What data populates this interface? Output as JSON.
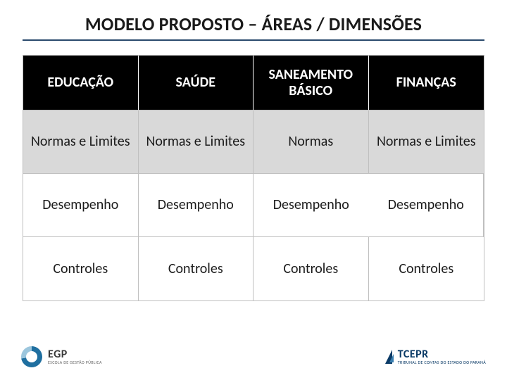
{
  "title": "MODELO PROPOSTO – ÁREAS / DIMENSÕES",
  "table": {
    "header_bg": "#000000",
    "header_fg": "#ffffff",
    "row2_bg": "#d9d9d9",
    "cell_border": "#bfbfbf",
    "columns": [
      "EDUCAÇÃO",
      "SAÚDE",
      "SANEAMENTO BÁSICO",
      "FINANÇAS"
    ],
    "rows": [
      [
        "Normas e Limites",
        "Normas e Limites",
        "Normas",
        "Normas e Limites"
      ],
      [
        "Desempenho",
        "Desempenho",
        "Desempenho",
        "Desempenho"
      ],
      [
        "Controles",
        "Controles",
        "Controles",
        "Controles"
      ]
    ]
  },
  "footer": {
    "left": {
      "abbr": "EGP",
      "sub": "ESCOLA DE GESTÃO PÚBLICA"
    },
    "right": {
      "abbr": "TCEPR",
      "sub": "TRIBUNAL DE CONTAS DO ESTADO DO PARANÁ"
    }
  },
  "colors": {
    "title_rule": "#2a4a6d",
    "text": "#1a1a1a",
    "egp_primary": "#1f6fa0",
    "tce_primary": "#0a3a66"
  }
}
